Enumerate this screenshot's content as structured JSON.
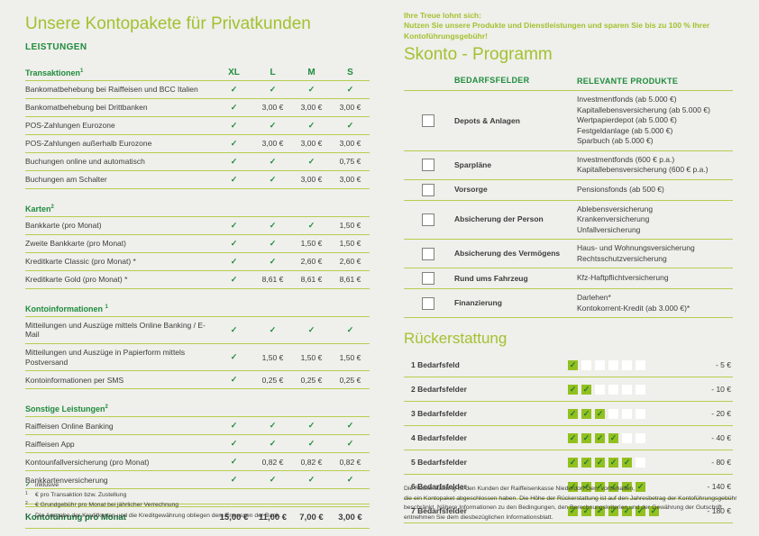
{
  "colors": {
    "background": "#efefeb",
    "lime": "#a3c130",
    "dark_green": "#1f8c3e",
    "separator": "#b7cd4e",
    "checked_box_bg": "#93c01f",
    "text": "#3c3c3b"
  },
  "left": {
    "title": "Unsere Kontopakete für Privatkunden",
    "subtitle": "LEISTUNGEN",
    "columns": [
      "XL",
      "L",
      "M",
      "S"
    ],
    "sections": [
      {
        "heading": "Transaktionen",
        "sup": "1",
        "show_columns": true,
        "rows": [
          {
            "label": "Bankomatbehebung bei Raiffeisen und BCC Italien",
            "values": [
              "✓",
              "✓",
              "✓",
              "✓"
            ]
          },
          {
            "label": "Bankomatbehebung bei Drittbanken",
            "values": [
              "✓",
              "3,00 €",
              "3,00 €",
              "3,00 €"
            ]
          },
          {
            "label": "POS-Zahlungen Eurozone",
            "values": [
              "✓",
              "✓",
              "✓",
              "✓"
            ]
          },
          {
            "label": "POS-Zahlungen außerhalb Eurozone",
            "values": [
              "✓",
              "3,00 €",
              "3,00 €",
              "3,00 €"
            ]
          },
          {
            "label": "Buchungen online und automatisch",
            "values": [
              "✓",
              "✓",
              "✓",
              "0,75 €"
            ]
          },
          {
            "label": "Buchungen am Schalter",
            "values": [
              "✓",
              "✓",
              "3,00 €",
              "3,00 €"
            ]
          }
        ]
      },
      {
        "heading": "Karten",
        "sup": "2",
        "show_columns": false,
        "rows": [
          {
            "label": "Bankkarte (pro Monat)",
            "values": [
              "✓",
              "✓",
              "✓",
              "1,50 €"
            ]
          },
          {
            "label": "Zweite Bankkarte (pro Monat)",
            "values": [
              "✓",
              "✓",
              "1,50 €",
              "1,50 €"
            ]
          },
          {
            "label": "Kreditkarte Classic (pro Monat) *",
            "values": [
              "✓",
              "✓",
              "2,60 €",
              "2,60 €"
            ]
          },
          {
            "label": "Kreditkarte Gold (pro Monat) *",
            "values": [
              "✓",
              "8,61 €",
              "8,61 €",
              "8,61 €"
            ]
          }
        ]
      },
      {
        "heading": "Kontoinformationen ",
        "sup": "1",
        "show_columns": false,
        "rows": [
          {
            "label": "Mitteilungen und Auszüge mittels Online Banking / E-Mail",
            "values": [
              "✓",
              "✓",
              "✓",
              "✓"
            ]
          },
          {
            "label": "Mitteilungen und Auszüge in Papierform mittels Postversand",
            "values": [
              "✓",
              "1,50 €",
              "1,50 €",
              "1,50 €"
            ]
          },
          {
            "label": "Kontoinformationen per SMS",
            "values": [
              "✓",
              "0,25 €",
              "0,25 €",
              "0,25 €"
            ]
          }
        ]
      },
      {
        "heading": "Sonstige Leistungen",
        "sup": "2",
        "show_columns": false,
        "rows": [
          {
            "label": "Raiffeisen Online Banking",
            "values": [
              "✓",
              "✓",
              "✓",
              "✓"
            ]
          },
          {
            "label": "Raiffeisen App",
            "values": [
              "✓",
              "✓",
              "✓",
              "✓"
            ]
          },
          {
            "label": "Kontounfallversicherung (pro Monat)",
            "values": [
              "✓",
              "0,82 €",
              "0,82 €",
              "0,82 €"
            ]
          },
          {
            "label": "Bankkartenversicherung",
            "values": [
              "✓",
              "✓",
              "✓",
              "✓"
            ]
          }
        ]
      }
    ],
    "total": {
      "label": "Kontoführung pro Monat",
      "values": [
        "15,00 €",
        "11,00 €",
        "7,00 €",
        "3,00 €"
      ]
    },
    "footnotes": [
      {
        "marker": "✓",
        "marker_type": "check",
        "text": "inklusive"
      },
      {
        "marker": "1",
        "marker_type": "sup",
        "text": "€ pro Transaktion bzw. Zustellung"
      },
      {
        "marker": "2",
        "marker_type": "sup",
        "text": "€ Grundgebühr pro Monat bei jährlicher Verrechnung"
      },
      {
        "marker": "*",
        "marker_type": "plain",
        "text": "Die Ausgabe der Kreditkarten und die Kreditgewährung obliegen dem Ermessen der Bank."
      }
    ]
  },
  "right": {
    "teaser_line1": "Ihre Treue lohnt sich:",
    "teaser_line2": "Nutzen Sie unsere Produkte und Dienstleistungen und sparen Sie bis zu 100 % Ihrer Kontoführungsgebühr!",
    "title": "Skonto - Programm",
    "table": {
      "col1": "BEDARFSFELDER",
      "col2": "RELEVANTE PRODUKTE",
      "rows": [
        {
          "field": "Depots & Anlagen",
          "products": [
            "Investmentfonds (ab 5.000 €)",
            "Kapitallebensversicherung (ab 5.000 €)",
            "Wertpapierdepot (ab 5.000 €)",
            "Festgeldanlage (ab 5.000 €)",
            "Sparbuch (ab 5.000 €)"
          ]
        },
        {
          "field": "Sparpläne",
          "products": [
            "Investmentfonds (600 € p.a.)",
            "Kapitallebensversicherung (600 € p.a.)"
          ]
        },
        {
          "field": "Vorsorge",
          "products": [
            "Pensionsfonds (ab 500 €)"
          ]
        },
        {
          "field": "Absicherung der Person",
          "products": [
            "Ablebensversicherung",
            "Krankenversicherung",
            "Unfallversicherung"
          ]
        },
        {
          "field": "Absicherung des Vermögens",
          "products": [
            "Haus- und Wohnungsversicherung",
            "Rechtsschutzversicherung"
          ]
        },
        {
          "field": "Rund ums Fahrzeug",
          "products": [
            "Kfz-Haftpflichtversicherung"
          ]
        },
        {
          "field": "Finanzierung",
          "products": [
            "Darlehen*",
            "Kontokorrent-Kredit (ab 3.000 €)*"
          ]
        }
      ]
    },
    "refund": {
      "title": "Rückerstattung",
      "rows": [
        {
          "label": "1 Bedarfsfeld",
          "checked": 1,
          "total_boxes": 6,
          "amount": "- 5 €"
        },
        {
          "label": "2 Bedarfsfelder",
          "checked": 2,
          "total_boxes": 6,
          "amount": "- 10 €"
        },
        {
          "label": "3 Bedarfsfelder",
          "checked": 3,
          "total_boxes": 6,
          "amount": "- 20 €"
        },
        {
          "label": "4 Bedarfsfelder",
          "checked": 4,
          "total_boxes": 6,
          "amount": "- 40 €"
        },
        {
          "label": "5 Bedarfsfelder",
          "checked": 5,
          "total_boxes": 6,
          "amount": "- 80 €"
        },
        {
          "label": "6 Bedarfsfelder",
          "checked": 6,
          "total_boxes": 6,
          "amount": "- 140 €"
        },
        {
          "label": "7 Bedarfsfelder",
          "checked": 7,
          "total_boxes": 7,
          "amount": "- 180 €"
        }
      ]
    },
    "note_lines": [
      "Die Rückerstattung ist den Kunden der Raiffeisenkasse Niederdorf Gen. vorbehalten,",
      "die ein Kontopaket abgeschlossen haben. Die Höhe der Rückerstattung ist auf den Jahresbetrag der Kontoführungsgebühr beschränkt. Nähere Informationen zu den Bedingungen, den Berechnungskriterien und der Gewährung der Gutschrift entnehmen Sie dem diesbezüglichen Informationsblatt."
    ]
  }
}
